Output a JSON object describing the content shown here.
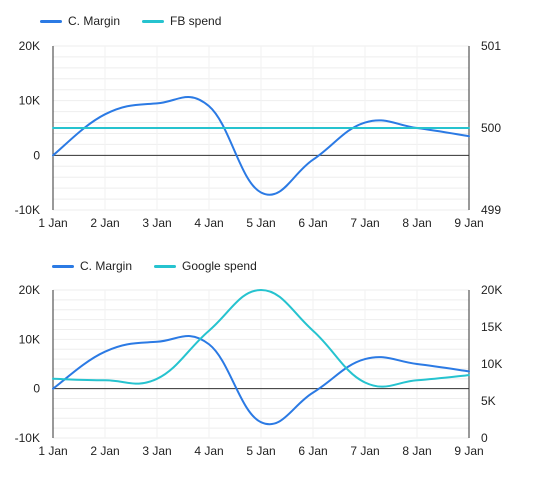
{
  "chart_data": [
    {
      "type": "line",
      "categories": [
        "1 Jan",
        "2 Jan",
        "3 Jan",
        "4 Jan",
        "5 Jan",
        "6 Jan",
        "7 Jan",
        "8 Jan",
        "9 Jan"
      ],
      "series": [
        {
          "name": "C. Margin",
          "axis": "left",
          "color": "#2b7ae4",
          "values": [
            0,
            7500,
            9500,
            9000,
            -6800,
            -800,
            6000,
            5000,
            3500
          ]
        },
        {
          "name": "FB spend",
          "axis": "right",
          "color": "#26c3cf",
          "values": [
            500,
            500,
            500,
            500,
            500,
            500,
            500,
            500,
            500
          ]
        }
      ],
      "left_axis": {
        "ylim": [
          -10000,
          20000
        ],
        "ticks": [
          20000,
          10000,
          0,
          -10000
        ],
        "tick_labels": [
          "20K",
          "10K",
          "0",
          "-10K"
        ]
      },
      "right_axis": {
        "ylim": [
          499,
          501
        ],
        "ticks": [
          501,
          500,
          499
        ],
        "tick_labels": [
          "501",
          "500",
          "499"
        ]
      },
      "grid": true,
      "legend_position": "top-left"
    },
    {
      "type": "line",
      "categories": [
        "1 Jan",
        "2 Jan",
        "3 Jan",
        "4 Jan",
        "5 Jan",
        "6 Jan",
        "7 Jan",
        "8 Jan",
        "9 Jan"
      ],
      "series": [
        {
          "name": "C. Margin",
          "axis": "left",
          "color": "#2b7ae4",
          "values": [
            0,
            7500,
            9500,
            9000,
            -6800,
            -800,
            6000,
            5000,
            3500
          ]
        },
        {
          "name": "Google spend",
          "axis": "right",
          "color": "#26c3cf",
          "values": [
            8000,
            7800,
            8000,
            14500,
            20000,
            14500,
            7500,
            7800,
            8500
          ]
        }
      ],
      "left_axis": {
        "ylim": [
          -10000,
          20000
        ],
        "ticks": [
          20000,
          10000,
          0,
          -10000
        ],
        "tick_labels": [
          "20K",
          "10K",
          "0",
          "-10K"
        ]
      },
      "right_axis": {
        "ylim": [
          0,
          20000
        ],
        "ticks": [
          20000,
          15000,
          10000,
          5000,
          0
        ],
        "tick_labels": [
          "20K",
          "15K",
          "10K",
          "5K",
          "0"
        ]
      },
      "grid": true,
      "legend_position": "top-left"
    }
  ]
}
